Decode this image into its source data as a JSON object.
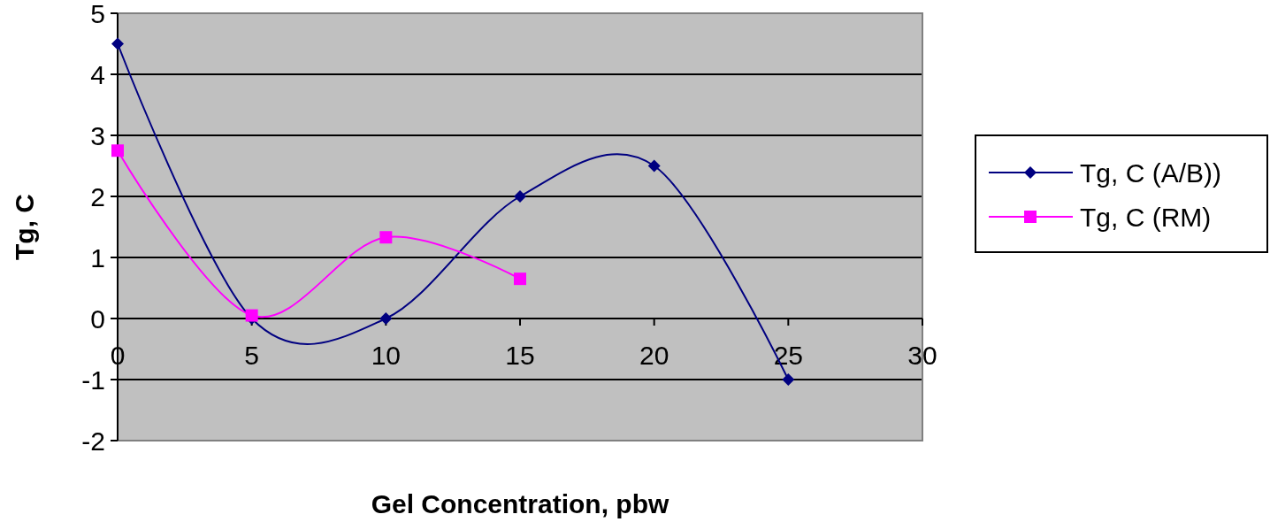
{
  "chart_data": {
    "type": "line",
    "xlabel": "Gel Concentration, pbw",
    "ylabel": "Tg, C",
    "x": [
      0,
      5,
      10,
      15,
      20,
      25
    ],
    "xlim": [
      0,
      30
    ],
    "xticks": [
      0,
      5,
      10,
      15,
      20,
      25,
      30
    ],
    "ylim": [
      -2,
      5
    ],
    "yticks": [
      -2,
      -1,
      0,
      1,
      2,
      3,
      4,
      5
    ],
    "grid": "y",
    "legend": "right",
    "series": [
      {
        "name": "Tg, C (A/B))",
        "color": "#000080",
        "marker": "diamond",
        "values": [
          4.5,
          0,
          0,
          2,
          2.5,
          -1
        ]
      },
      {
        "name": "Tg, C (RM)",
        "color": "#ff00ff",
        "marker": "square",
        "x": [
          0,
          5,
          10,
          15
        ],
        "values": [
          2.75,
          0.05,
          1.33,
          0.65
        ]
      }
    ]
  }
}
